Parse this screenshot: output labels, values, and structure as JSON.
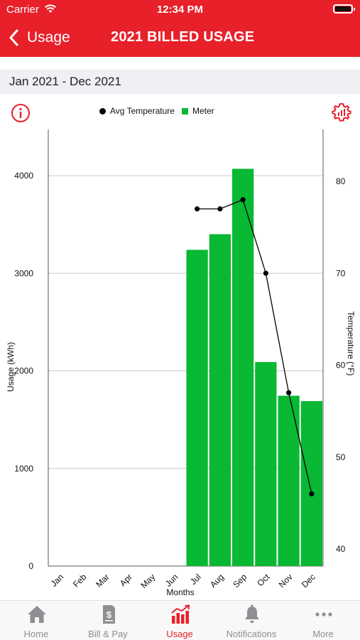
{
  "status_bar": {
    "carrier": "Carrier",
    "time": "12:34 PM"
  },
  "nav": {
    "back_label": "Usage",
    "title": "2021 BILLED USAGE"
  },
  "date_range": "Jan 2021 - Dec 2021",
  "legend": {
    "temperature_label": "Avg Temperature",
    "meter_label": "Meter"
  },
  "colors": {
    "brand": "#e8202a",
    "meter": "#09b833",
    "temperature": "#000000",
    "tab_inactive": "#8e8e93"
  },
  "icons": {
    "info": "info-icon",
    "settings": "settings-gear-icon",
    "home": "home-icon",
    "bill_pay": "bill-icon",
    "usage": "usage-chart-icon",
    "notifications": "bell-icon",
    "more": "more-icon"
  },
  "chart_data": {
    "type": "bar",
    "categories": [
      "Jan",
      "Feb",
      "Mar",
      "Apr",
      "May",
      "Jun",
      "Jul",
      "Aug",
      "Sep",
      "Oct",
      "Nov",
      "Dec"
    ],
    "series": [
      {
        "name": "Meter",
        "type": "bar",
        "axis": "left",
        "values": [
          0,
          0,
          0,
          0,
          0,
          0,
          3240,
          3400,
          4070,
          2090,
          1745,
          1690
        ]
      },
      {
        "name": "Avg Temperature",
        "type": "line",
        "axis": "right",
        "values": [
          null,
          null,
          null,
          null,
          null,
          null,
          77,
          77,
          78,
          70,
          57,
          46
        ]
      }
    ],
    "xlabel": "Months",
    "ylabel": "Usage (kWh)",
    "y2label": "Temperature (°F)",
    "ylim": [
      0,
      4000
    ],
    "yticks": [
      0,
      1000,
      2000,
      3000,
      4000
    ],
    "y2lim": [
      40,
      80
    ],
    "y2ticks": [
      40,
      50,
      60,
      70,
      80
    ],
    "grid": true,
    "legend_position": "top"
  },
  "tabs": [
    {
      "label": "Home",
      "active": false
    },
    {
      "label": "Bill & Pay",
      "active": false
    },
    {
      "label": "Usage",
      "active": true
    },
    {
      "label": "Notifications",
      "active": false
    },
    {
      "label": "More",
      "active": false
    }
  ]
}
